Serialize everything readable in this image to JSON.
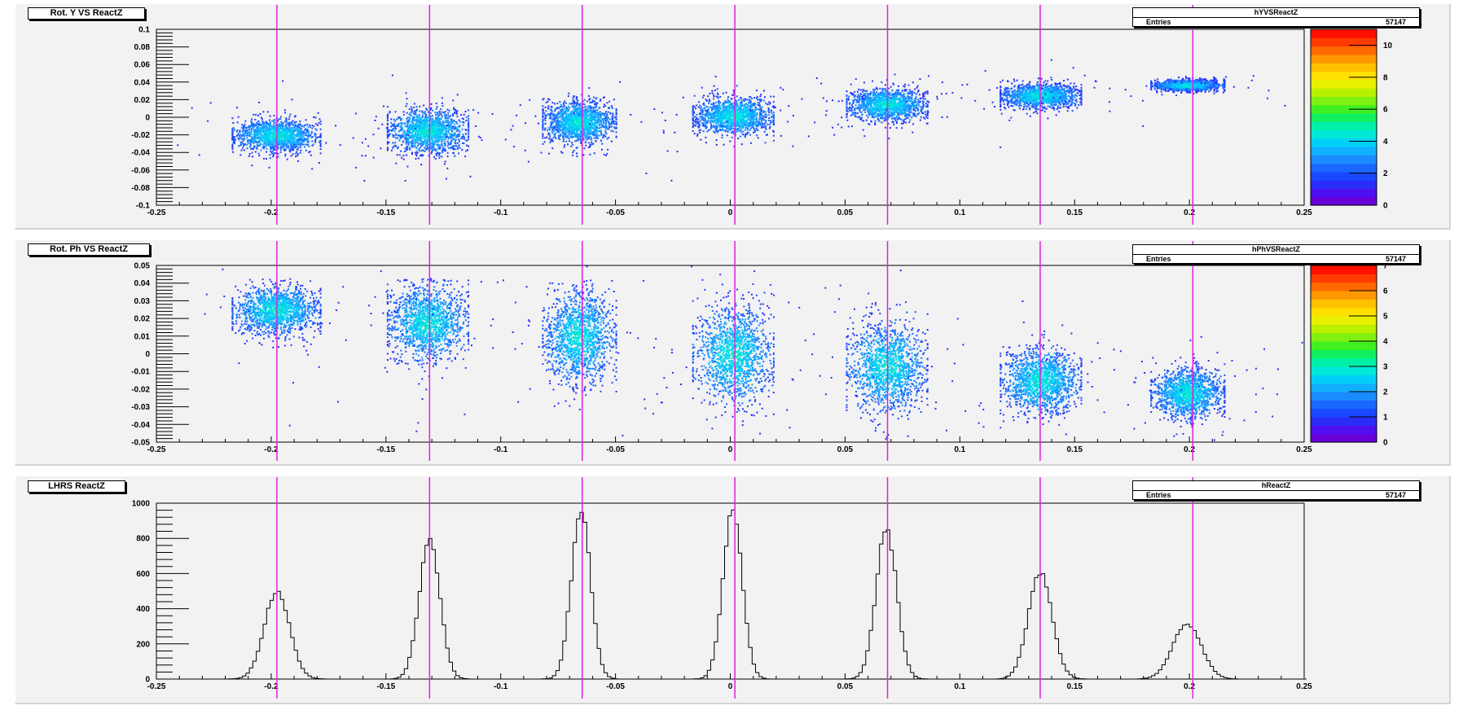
{
  "chart_data": [
    {
      "type": "heatmap",
      "title": "Rot. Y VS ReactZ",
      "histogram_name": "hYVSReactZ",
      "stats": {
        "label": "Entries",
        "value": "57147"
      },
      "xlim": [
        -0.25,
        0.25
      ],
      "ylim": [
        -0.1,
        0.1
      ],
      "x_ticks": [
        "-0.25",
        "-0.2",
        "-0.15",
        "-0.1",
        "-0.05",
        "0",
        "0.05",
        "0.1",
        "0.15",
        "0.2",
        "0.25"
      ],
      "y_ticks": [
        "-0.1",
        "-0.08",
        "-0.06",
        "-0.04",
        "-0.02",
        "0",
        "0.02",
        "0.04",
        "0.06",
        "0.08",
        "0.1"
      ],
      "z_ticks": [
        "0",
        "2",
        "4",
        "6",
        "8",
        "10"
      ],
      "zlim": [
        0,
        11
      ],
      "clusters": [
        {
          "x": -0.198,
          "y": -0.02,
          "sx": 0.012,
          "sy": 0.012
        },
        {
          "x": -0.132,
          "y": -0.015,
          "sx": 0.011,
          "sy": 0.016
        },
        {
          "x": -0.066,
          "y": -0.005,
          "sx": 0.01,
          "sy": 0.016
        },
        {
          "x": 0.001,
          "y": 0.002,
          "sx": 0.011,
          "sy": 0.014
        },
        {
          "x": 0.068,
          "y": 0.015,
          "sx": 0.011,
          "sy": 0.012
        },
        {
          "x": 0.135,
          "y": 0.025,
          "sx": 0.011,
          "sy": 0.009
        },
        {
          "x": 0.199,
          "y": 0.037,
          "sx": 0.01,
          "sy": 0.004
        }
      ],
      "vlines": [
        -0.1975,
        -0.131,
        -0.0645,
        0.002,
        0.0685,
        0.135,
        0.2015
      ],
      "grid": false
    },
    {
      "type": "heatmap",
      "title": "Rot. Ph VS ReactZ",
      "histogram_name": "hPhVSReactZ",
      "stats": {
        "label": "Entries",
        "value": "57147"
      },
      "xlim": [
        -0.25,
        0.25
      ],
      "ylim": [
        -0.05,
        0.05
      ],
      "x_ticks": [
        "-0.25",
        "-0.2",
        "-0.15",
        "-0.1",
        "-0.05",
        "0",
        "0.05",
        "0.1",
        "0.15",
        "0.2",
        "0.25"
      ],
      "y_ticks": [
        "-0.05",
        "-0.04",
        "-0.03",
        "-0.02",
        "-0.01",
        "0",
        "0.01",
        "0.02",
        "0.03",
        "0.04",
        "0.05"
      ],
      "z_ticks": [
        "0",
        "1",
        "2",
        "3",
        "4",
        "5",
        "6",
        "7"
      ],
      "zlim": [
        0,
        7
      ],
      "clusters": [
        {
          "x": -0.198,
          "y": 0.025,
          "sx": 0.012,
          "sy": 0.009,
          "ymax": 0.043
        },
        {
          "x": -0.132,
          "y": 0.018,
          "sx": 0.011,
          "sy": 0.014,
          "ymax": 0.043
        },
        {
          "x": -0.066,
          "y": 0.01,
          "sx": 0.01,
          "sy": 0.017,
          "ymax": 0.042
        },
        {
          "x": 0.001,
          "y": 0.0,
          "sx": 0.011,
          "sy": 0.018,
          "ymax": 0.04
        },
        {
          "x": 0.068,
          "y": -0.007,
          "sx": 0.011,
          "sy": 0.016,
          "ymax": 0.03
        },
        {
          "x": 0.135,
          "y": -0.015,
          "sx": 0.011,
          "sy": 0.012,
          "ymax": 0.022
        },
        {
          "x": 0.199,
          "y": -0.022,
          "sx": 0.01,
          "sy": 0.009,
          "ymax": 0.01
        }
      ],
      "vlines": [
        -0.1975,
        -0.131,
        -0.0645,
        0.002,
        0.0685,
        0.135,
        0.2015
      ],
      "grid": false
    },
    {
      "type": "bar",
      "title": "LHRS ReactZ",
      "histogram_name": "hReactZ",
      "stats": {
        "label": "Entries",
        "value": "57147"
      },
      "xlim": [
        -0.25,
        0.25
      ],
      "ylim": [
        0,
        1000
      ],
      "x_ticks": [
        "-0.25",
        "-0.2",
        "-0.15",
        "-0.1",
        "-0.05",
        "0",
        "0.05",
        "0.1",
        "0.15",
        "0.2",
        "0.25"
      ],
      "y_ticks": [
        "0",
        "200",
        "400",
        "600",
        "800",
        "1000"
      ],
      "peaks": [
        {
          "x": -0.1975,
          "height": 500,
          "sigma": 0.0055
        },
        {
          "x": -0.131,
          "height": 790,
          "sigma": 0.0045
        },
        {
          "x": -0.065,
          "height": 955,
          "sigma": 0.0042
        },
        {
          "x": 0.001,
          "height": 965,
          "sigma": 0.0042
        },
        {
          "x": 0.068,
          "height": 850,
          "sigma": 0.0045
        },
        {
          "x": 0.135,
          "height": 600,
          "sigma": 0.0052
        },
        {
          "x": 0.199,
          "height": 315,
          "sigma": 0.0062
        }
      ],
      "bin_width": 0.0015,
      "vlines": [
        -0.1975,
        -0.131,
        -0.0645,
        0.002,
        0.0685,
        0.135,
        0.2015
      ],
      "grid": false
    }
  ],
  "colors": {
    "vline": "#e020e0",
    "frame": "#000000",
    "pad_bg": "#f2f2f2"
  }
}
